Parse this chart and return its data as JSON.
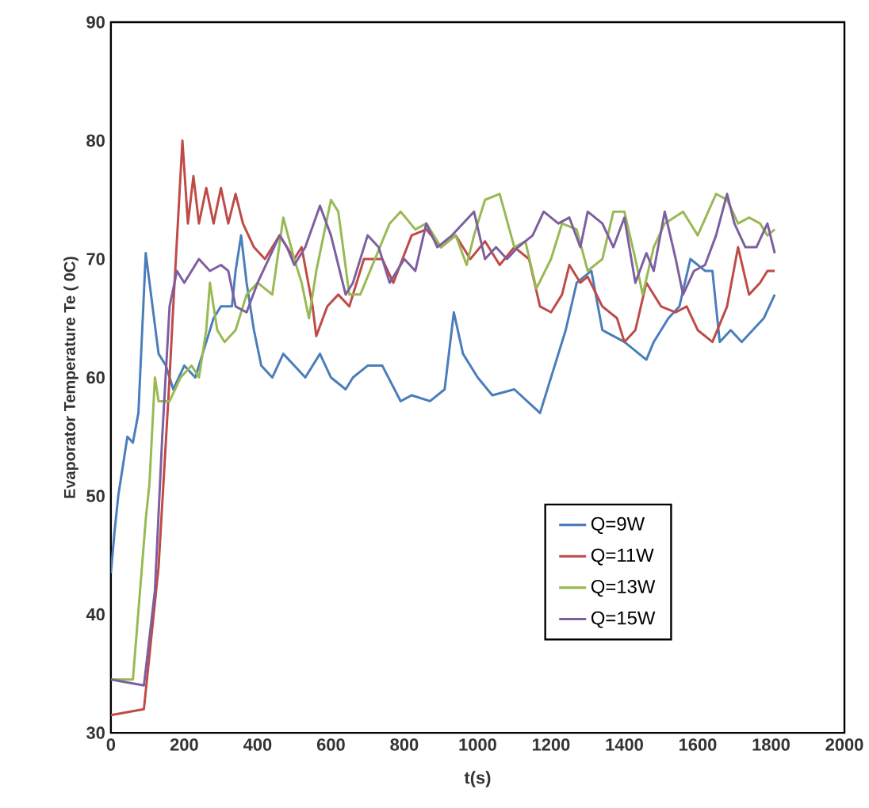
{
  "chart_data": {
    "type": "line",
    "xlabel": "t(s)",
    "ylabel": "Evaporator Temperature Te ( 0C)",
    "xlim": [
      0,
      2000
    ],
    "ylim": [
      30,
      90
    ],
    "xticks": [
      0,
      200,
      400,
      600,
      800,
      1000,
      1200,
      1400,
      1600,
      1800,
      2000
    ],
    "yticks": [
      30,
      40,
      50,
      60,
      70,
      80,
      90
    ],
    "grid": false,
    "legend": "bottom right",
    "marker": "none",
    "line_style": "solid",
    "series": [
      {
        "name": "Q=9W",
        "color": "#4a7ebb",
        "x": [
          0,
          10,
          20,
          45,
          60,
          75,
          95,
          130,
          150,
          170,
          200,
          230,
          250,
          280,
          300,
          330,
          340,
          355,
          370,
          390,
          410,
          440,
          470,
          500,
          530,
          570,
          600,
          640,
          660,
          700,
          740,
          790,
          820,
          870,
          910,
          935,
          960,
          1000,
          1040,
          1100,
          1170,
          1210,
          1240,
          1270,
          1310,
          1340,
          1400,
          1460,
          1480,
          1520,
          1550,
          1580,
          1620,
          1640,
          1660,
          1690,
          1720,
          1750,
          1780,
          1810
        ],
        "values": [
          43.5,
          47,
          50,
          55,
          54.5,
          57,
          70.5,
          62,
          61,
          59,
          61,
          60,
          62,
          65,
          66,
          66,
          69,
          72,
          68,
          64,
          61,
          60,
          62,
          61,
          60,
          62,
          60,
          59,
          60,
          61,
          61,
          58,
          58.5,
          58,
          59,
          65.5,
          62,
          60,
          58.5,
          59,
          57,
          61,
          64,
          68,
          69,
          64,
          63,
          61.5,
          63,
          65,
          66,
          70,
          69,
          69,
          63,
          64,
          63,
          64,
          65,
          67
        ]
      },
      {
        "name": "Q=11W",
        "color": "#be4b48",
        "x": [
          0,
          90,
          130,
          160,
          170,
          195,
          210,
          225,
          240,
          260,
          280,
          300,
          320,
          340,
          360,
          390,
          420,
          460,
          500,
          520,
          550,
          560,
          590,
          620,
          650,
          690,
          740,
          770,
          820,
          860,
          900,
          940,
          980,
          1020,
          1060,
          1100,
          1140,
          1170,
          1200,
          1230,
          1250,
          1280,
          1300,
          1340,
          1380,
          1400,
          1430,
          1460,
          1500,
          1540,
          1570,
          1600,
          1640,
          1680,
          1710,
          1740,
          1770,
          1790,
          1810
        ],
        "values": [
          31.5,
          32,
          44,
          60,
          66,
          80,
          73,
          77,
          73,
          76,
          73,
          76,
          73,
          75.5,
          73,
          71,
          70,
          72,
          70,
          71,
          66,
          63.5,
          66,
          67,
          66,
          70,
          70,
          68,
          72,
          72.5,
          71,
          72,
          70,
          71.5,
          69.5,
          71,
          70,
          66,
          65.5,
          67,
          69.5,
          68,
          68.5,
          66,
          65,
          63,
          64,
          68,
          66,
          65.5,
          66,
          64,
          63,
          66,
          71,
          67,
          68,
          69,
          69
        ]
      },
      {
        "name": "Q=13W",
        "color": "#98b954",
        "x": [
          0,
          60,
          95,
          105,
          120,
          130,
          160,
          190,
          220,
          240,
          260,
          270,
          290,
          310,
          340,
          370,
          400,
          440,
          470,
          500,
          520,
          540,
          560,
          580,
          600,
          620,
          650,
          680,
          720,
          760,
          790,
          830,
          860,
          900,
          940,
          970,
          990,
          1020,
          1060,
          1100,
          1130,
          1160,
          1200,
          1230,
          1270,
          1300,
          1340,
          1370,
          1400,
          1430,
          1450,
          1480,
          1510,
          1560,
          1600,
          1650,
          1680,
          1710,
          1740,
          1770,
          1790,
          1810
        ],
        "values": [
          34.5,
          34.5,
          48,
          51,
          60,
          58,
          58,
          60,
          61,
          60,
          64,
          68,
          64,
          63,
          64,
          67,
          68,
          67,
          73.5,
          70,
          68,
          65,
          69,
          72,
          75,
          74,
          67,
          67,
          70,
          73,
          74,
          72.5,
          73,
          71,
          72,
          69.5,
          72,
          75,
          75.5,
          71,
          71.5,
          67.5,
          70,
          73,
          72.5,
          69,
          70,
          74,
          74,
          70,
          67,
          71,
          73,
          74,
          72,
          75.5,
          75,
          73,
          73.5,
          73,
          72,
          72.5
        ]
      },
      {
        "name": "Q=15W",
        "color": "#7d5fa0",
        "x": [
          0,
          90,
          120,
          140,
          160,
          180,
          200,
          240,
          270,
          300,
          320,
          340,
          370,
          400,
          430,
          460,
          480,
          500,
          530,
          570,
          600,
          640,
          660,
          700,
          730,
          760,
          800,
          830,
          860,
          890,
          930,
          990,
          1020,
          1050,
          1080,
          1110,
          1150,
          1180,
          1220,
          1250,
          1280,
          1300,
          1340,
          1370,
          1400,
          1430,
          1460,
          1480,
          1510,
          1540,
          1560,
          1590,
          1620,
          1650,
          1680,
          1700,
          1730,
          1760,
          1790,
          1810
        ],
        "values": [
          34.5,
          34,
          42,
          55,
          66,
          69,
          68,
          70,
          69,
          69.5,
          69,
          66,
          65.5,
          68,
          70,
          72,
          71,
          69.5,
          71,
          74.5,
          72,
          67,
          68,
          72,
          71,
          68,
          70,
          69,
          73,
          71,
          72,
          74,
          70,
          71,
          70,
          71,
          72,
          74,
          73,
          73.5,
          71,
          74,
          73,
          71,
          73.5,
          68,
          70.5,
          69,
          74,
          70,
          67,
          69,
          69.5,
          72,
          75.5,
          73,
          71,
          71,
          73,
          70.5
        ]
      }
    ]
  }
}
